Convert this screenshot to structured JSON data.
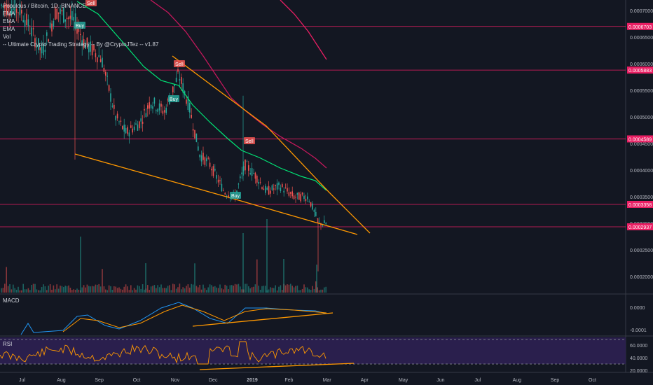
{
  "legend": {
    "symbol_line": "Populous / Bitcoin, 1D, BINANCE",
    "ema1": "EMA",
    "ema2": "EMA",
    "ema3": "EMA",
    "vol": "Vol",
    "strategy": "-- Ultimate Crypto Trading Strategy -- By @CryptoJTez -- v1.87"
  },
  "panels": {
    "macd_label": "MACD",
    "rsi_label": "RSI"
  },
  "colors": {
    "background": "#131722",
    "up": "#26a69a",
    "down": "#ef5350",
    "ema_fast": "#00e676",
    "ema_mid": "#c2185b",
    "ema_slow": "#e91e63",
    "trendline": "#ff9800",
    "hline": "#e91e63",
    "rsi_bg": "#2a1f4d",
    "macd_line": "#2196f3",
    "signal_line": "#ff9800"
  },
  "chart_data": {
    "type": "candlestick",
    "price_axis": {
      "ticks": [
        "0.0007000",
        "0.0006500",
        "0.0006000",
        "0.0005500",
        "0.0005000",
        "0.0004500",
        "0.0004000",
        "0.0003500",
        "0.0003000",
        "0.0002500",
        "0.0002000"
      ],
      "ylim": [
        0.00017,
        0.00072
      ]
    },
    "price_levels": [
      {
        "value": 0.0006703,
        "label": "0.0006703"
      },
      {
        "value": 0.0005883,
        "label": "0.0005883"
      },
      {
        "value": 0.0004589,
        "label": "0.0004589"
      },
      {
        "value": 0.0003358,
        "label": "0.0003358"
      },
      {
        "value": 0.0002937,
        "label": "0.0002937"
      }
    ],
    "time_axis": [
      "Jul",
      "Aug",
      "Sep",
      "Oct",
      "Nov",
      "Dec",
      "2019",
      "Feb",
      "Mar",
      "Apr",
      "May",
      "Jun",
      "Jul",
      "Aug",
      "Sep",
      "Oct"
    ],
    "signals": [
      {
        "text": "Sell",
        "type": "sell",
        "price": 0.00071
      },
      {
        "text": "Buy",
        "type": "buy",
        "price": 0.00066
      },
      {
        "text": "Sell",
        "type": "sell",
        "price": 0.00059
      },
      {
        "text": "Buy",
        "type": "buy",
        "price": 0.00052
      },
      {
        "text": "Sell",
        "type": "sell",
        "price": 0.00043
      },
      {
        "text": "Buy",
        "type": "buy",
        "price": 0.00033
      }
    ],
    "macd_axis": [
      "0.0000",
      "-0.0001"
    ],
    "rsi_axis": [
      "60.0000",
      "40.0000",
      "20.0000"
    ]
  }
}
